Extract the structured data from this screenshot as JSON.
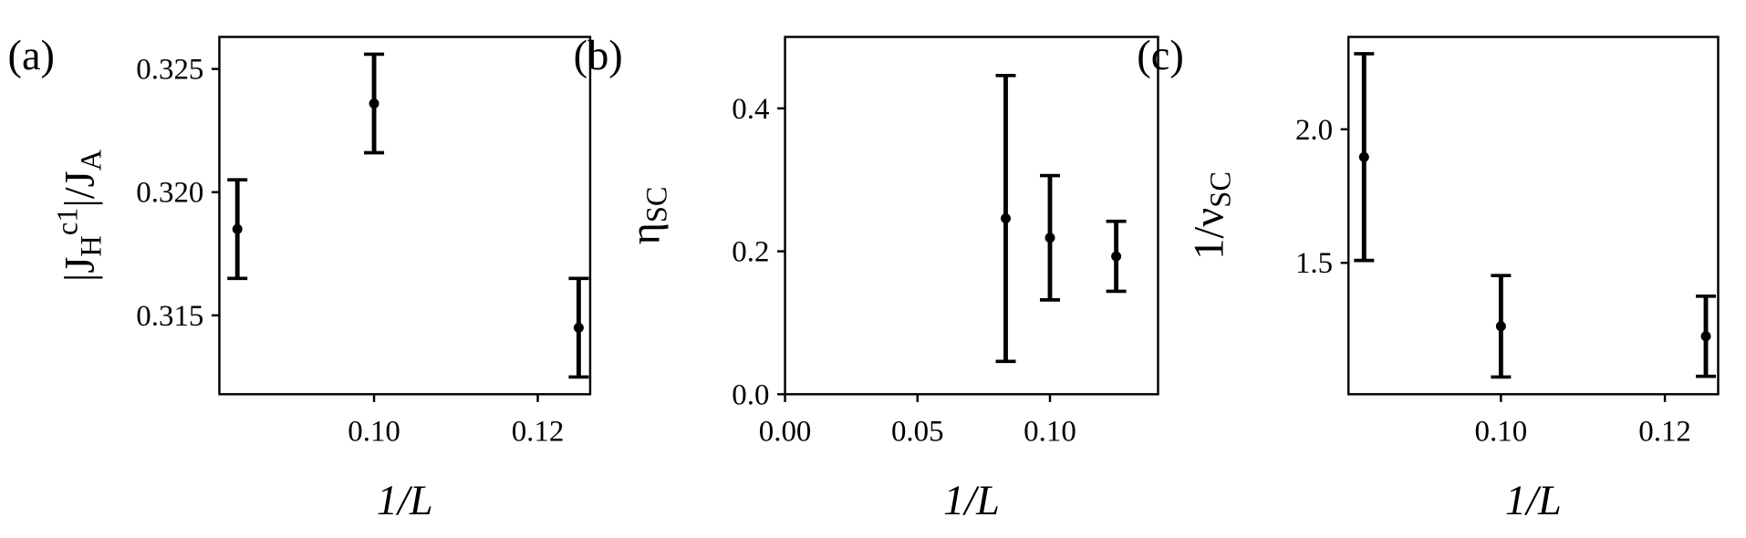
{
  "chart_data": [
    {
      "type": "errorbar",
      "panel": "(a)",
      "xlabel": "1/L",
      "ylabel": "|J_H^c1|/J_A",
      "x": [
        0.0833,
        0.1,
        0.125
      ],
      "values": [
        0.3185,
        0.3236,
        0.3145
      ],
      "errors": [
        0.002,
        0.002,
        0.002
      ],
      "color": "#000000",
      "xlim": [
        0.0811,
        0.1264
      ],
      "ylim": [
        0.3118,
        0.3263
      ],
      "xticks": [
        {
          "value": 0.1,
          "label": "0.10"
        },
        {
          "value": 0.12,
          "label": "0.12"
        }
      ],
      "yticks": [
        0.315,
        {
          "value": 0.32,
          "label": "0.320"
        },
        0.325
      ]
    },
    {
      "type": "errorbar",
      "panel": "(b)",
      "xlabel": "1/L",
      "ylabel": "η_SC",
      "x": [
        0.0833,
        0.1,
        0.125
      ],
      "values": [
        0.246,
        0.219,
        0.193
      ],
      "errors": [
        0.2,
        0.087,
        0.049
      ],
      "color": "#000000",
      "xlim": [
        0,
        0.1408
      ],
      "ylim": [
        0,
        0.5
      ],
      "xticks": [
        {
          "value": 0,
          "label": "0.00"
        },
        0.05,
        {
          "value": 0.1,
          "label": "0.10"
        }
      ],
      "yticks": [
        {
          "value": 0,
          "label": "0.0"
        },
        0.2,
        0.4
      ]
    },
    {
      "type": "errorbar",
      "panel": "(c)",
      "xlabel": "1/L",
      "ylabel": "1/ν_SC",
      "x": [
        0.0833,
        0.1,
        0.125
      ],
      "values": [
        1.896,
        1.2625,
        1.225
      ],
      "errors": [
        0.387,
        0.19,
        0.15
      ],
      "color": "#000000",
      "xlim": [
        0.0814,
        0.1265
      ],
      "ylim": [
        1.008,
        2.346
      ],
      "xticks": [
        {
          "value": 0.1,
          "label": "0.10"
        },
        {
          "value": 0.12,
          "label": "0.12"
        }
      ],
      "yticks": [
        1.5,
        {
          "value": 2,
          "label": "2.0"
        }
      ]
    }
  ]
}
